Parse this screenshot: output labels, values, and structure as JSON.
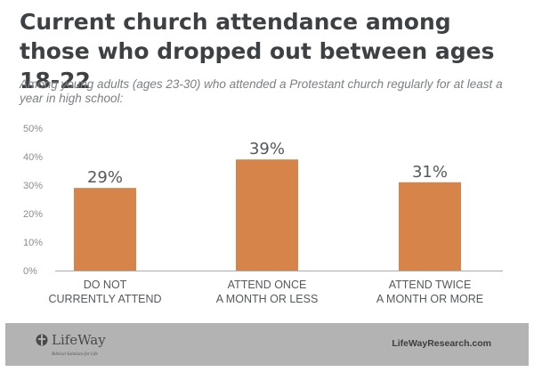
{
  "chart_data": {
    "type": "bar",
    "title": "Current church attendance among those who dropped out between ages 18-22",
    "subtitle": "Among young adults (ages 23-30) who attended a Protestant church regularly for at least a year in high school:",
    "categories": [
      [
        "DO NOT",
        "CURRENTLY ATTEND"
      ],
      [
        "ATTEND ONCE",
        "A MONTH OR LESS"
      ],
      [
        "ATTEND TWICE",
        "A MONTH OR MORE"
      ]
    ],
    "values": [
      29,
      39,
      31
    ],
    "data_labels": [
      "29%",
      "39%",
      "31%"
    ],
    "yticks": [
      0,
      10,
      20,
      30,
      40,
      50
    ],
    "ytick_labels": [
      "0%",
      "10%",
      "20%",
      "30%",
      "40%",
      "50%"
    ],
    "ylim": [
      0,
      50
    ],
    "grid": false,
    "bar_color": "#d6844a"
  },
  "footer": {
    "brand": "LifeWay",
    "tagline": "Biblical Solutions for Life",
    "website": "LifeWayResearch.com",
    "background": "#b3b3b3"
  }
}
